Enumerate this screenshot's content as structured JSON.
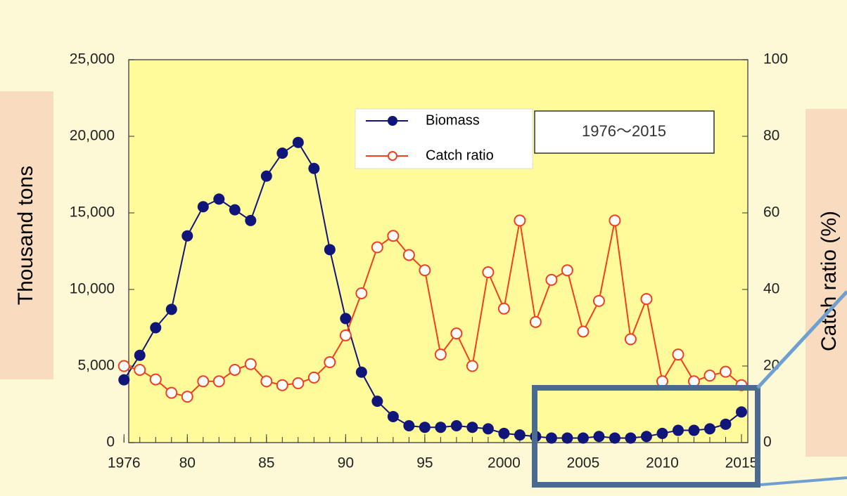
{
  "chart_data": {
    "type": "line",
    "x": [
      1976,
      1977,
      1978,
      1979,
      1980,
      1981,
      1982,
      1983,
      1984,
      1985,
      1986,
      1987,
      1988,
      1989,
      1990,
      1991,
      1992,
      1993,
      1994,
      1995,
      1996,
      1997,
      1998,
      1999,
      2000,
      2001,
      2002,
      2003,
      2004,
      2005,
      2006,
      2007,
      2008,
      2009,
      2010,
      2011,
      2012,
      2013,
      2014,
      2015
    ],
    "series": [
      {
        "name": "Biomass",
        "color": "#10157a",
        "marker": "filled",
        "values": [
          4100,
          5700,
          7500,
          8700,
          13500,
          15400,
          15900,
          15200,
          14500,
          17400,
          18900,
          19600,
          17900,
          12600,
          8100,
          4600,
          2700,
          1700,
          1100,
          1000,
          1000,
          1100,
          1000,
          900,
          600,
          500,
          400,
          300,
          300,
          300,
          400,
          300,
          300,
          400,
          600,
          800,
          800,
          900,
          1200,
          2000
        ]
      },
      {
        "name": "Catch ratio",
        "color": "#f0401e",
        "marker": "open",
        "axis": "y2",
        "values": [
          20,
          19,
          16.5,
          13,
          12,
          16,
          16,
          19,
          20.5,
          16,
          15,
          15.5,
          17,
          21,
          28,
          39,
          51,
          54,
          49,
          45,
          23,
          28.5,
          20,
          44.5,
          35,
          58,
          31.5,
          42.5,
          45,
          29,
          37,
          58,
          27,
          37.5,
          16,
          23,
          16,
          17.5,
          18.5,
          15
        ]
      }
    ],
    "ylabel": "Thousand tons",
    "y2label": "Catch ratio (%)",
    "annotation": "1976～2015",
    "xlim": [
      1976.3,
      2015.4
    ],
    "xticks": [
      {
        "value": 1976,
        "label": "1976"
      },
      {
        "value": 1980,
        "label": "80"
      },
      {
        "value": 1985,
        "label": "85"
      },
      {
        "value": 1990,
        "label": "90"
      },
      {
        "value": 1995,
        "label": "95"
      },
      2000,
      2005,
      2010,
      2015
    ],
    "ylim": [
      0,
      25000
    ],
    "yticks": [
      0,
      {
        "value": 5000,
        "label": "5,000"
      },
      {
        "value": 10000,
        "label": "10,000"
      },
      {
        "value": 15000,
        "label": "15,000"
      },
      {
        "value": 20000,
        "label": "20,000"
      },
      {
        "value": 25000,
        "label": "25,000"
      }
    ],
    "y2lim": [
      0,
      100
    ],
    "y2ticks": [
      0,
      20,
      40,
      60,
      80,
      100
    ]
  }
}
